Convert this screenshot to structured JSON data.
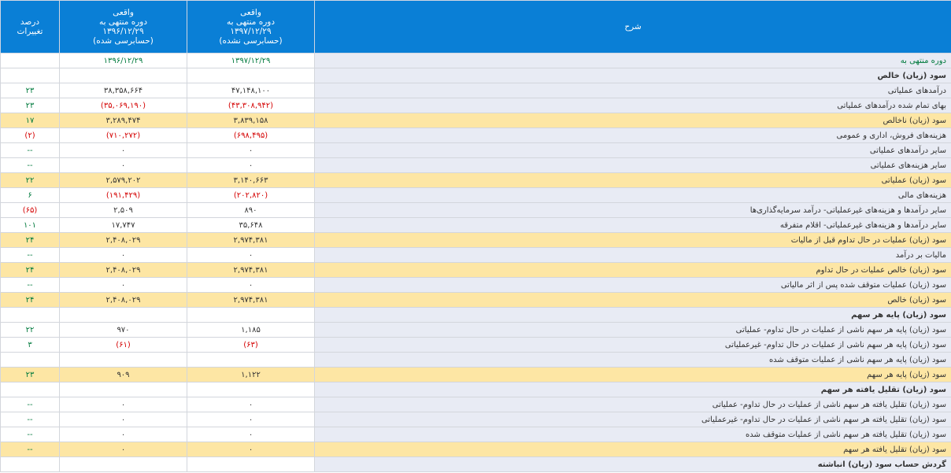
{
  "table": {
    "header": [
      [
        "شرح"
      ],
      [
        "واقعی",
        "دوره منتهی به",
        "۱۳۹۷/۱۲/۲۹",
        "(حسابرسی نشده)"
      ],
      [
        "واقعی",
        "دوره منتهی به",
        "۱۳۹۶/۱۲/۲۹",
        "(حسابرسی شده)"
      ],
      [
        "درصد",
        "تغییرات"
      ]
    ],
    "rows": [
      {
        "style": "period",
        "cells": [
          "دوره منتهی به",
          "۱۳۹۷/۱۲/۲۹",
          "۱۳۹۶/۱۲/۲۹",
          null
        ]
      },
      {
        "style": "section",
        "cells": [
          "سود (زیان) خالص",
          null,
          null,
          null
        ]
      },
      {
        "style": "normal",
        "cells": [
          "درآمدهای عملیاتی",
          "۴۷,۱۴۸,۱۰۰",
          "۳۸,۳۵۸,۶۶۴",
          "۲۳"
        ]
      },
      {
        "style": "normal",
        "cells": [
          "بهای تمام شده درآمدهای عملیاتی",
          "(۴۳,۳۰۸,۹۴۲)",
          "(۳۵,۰۶۹,۱۹۰)",
          "۲۳"
        ]
      },
      {
        "style": "total",
        "cells": [
          "سود (زیان) ناخالص",
          "۳,۸۳۹,۱۵۸",
          "۳,۲۸۹,۴۷۴",
          "۱۷"
        ]
      },
      {
        "style": "normal",
        "cells": [
          "هزینه‌های فروش، اداری و عمومی",
          "(۶۹۸,۴۹۵)",
          "(۷۱۰,۲۷۲)",
          "(۲)"
        ]
      },
      {
        "style": "normal",
        "cells": [
          "سایر درآمدهای عملیاتی",
          "۰",
          "۰",
          "--"
        ]
      },
      {
        "style": "normal",
        "cells": [
          "سایر هزینه‌های عملیاتی",
          "۰",
          "۰",
          "--"
        ]
      },
      {
        "style": "total",
        "cells": [
          "سود (زیان) عملیاتی",
          "۳,۱۴۰,۶۶۳",
          "۲,۵۷۹,۲۰۲",
          "۲۲"
        ]
      },
      {
        "style": "normal",
        "cells": [
          "هزینه‌های مالی",
          "(۲۰۲,۸۲۰)",
          "(۱۹۱,۴۲۹)",
          "۶"
        ]
      },
      {
        "style": "normal",
        "cells": [
          "سایر درآمدها و هزینه‌های غیرعملیاتی- درآمد سرمایه‌گذاری‌ها",
          "۸۹۰",
          "۲,۵۰۹",
          "(۶۵)"
        ]
      },
      {
        "style": "normal",
        "cells": [
          "سایر درآمدها و هزینه‌های غیرعملیاتی- اقلام متفرقه",
          "۳۵,۶۴۸",
          "۱۷,۷۴۷",
          "۱۰۱"
        ]
      },
      {
        "style": "total",
        "cells": [
          "سود (زیان) عملیات در حال تداوم قبل از مالیات",
          "۲,۹۷۴,۳۸۱",
          "۲,۴۰۸,۰۲۹",
          "۲۴"
        ]
      },
      {
        "style": "normal",
        "cells": [
          "مالیات بر درآمد",
          "۰",
          "۰",
          "--"
        ]
      },
      {
        "style": "total",
        "cells": [
          "سود (زیان) خالص عملیات در حال تداوم",
          "۲,۹۷۴,۳۸۱",
          "۲,۴۰۸,۰۲۹",
          "۲۴"
        ]
      },
      {
        "style": "normal",
        "cells": [
          "سود (زیان) عملیات متوقف شده پس از اثر مالیاتی",
          "۰",
          "۰",
          "--"
        ]
      },
      {
        "style": "total",
        "cells": [
          "سود (زیان) خالص",
          "۲,۹۷۴,۳۸۱",
          "۲,۴۰۸,۰۲۹",
          "۲۴"
        ]
      },
      {
        "style": "section",
        "cells": [
          "سود (زیان) پایه هر سهم",
          null,
          null,
          null
        ]
      },
      {
        "style": "normal",
        "cells": [
          "سود (زیان) پایه هر سهم ناشی از عملیات در حال تداوم- عملیاتی",
          "۱,۱۸۵",
          "۹۷۰",
          "۲۲"
        ]
      },
      {
        "style": "normal",
        "cells": [
          "سود (زیان) پایه هر سهم ناشی از عملیات در حال تداوم- غیرعملیاتی",
          "(۶۳)",
          "(۶۱)",
          "۳"
        ]
      },
      {
        "style": "normal",
        "cells": [
          "سود (زیان) پایه هر سهم ناشی از عملیات متوقف شده",
          null,
          null,
          null
        ]
      },
      {
        "style": "total",
        "cells": [
          "سود (زیان) پایه هر سهم",
          "۱,۱۲۲",
          "۹۰۹",
          "۲۳"
        ]
      },
      {
        "style": "section",
        "cells": [
          "سود (زیان) تقلیل یافته هر سهم",
          null,
          null,
          null
        ]
      },
      {
        "style": "normal",
        "cells": [
          "سود (زیان) تقلیل یافته هر سهم ناشی از عملیات در حال تداوم- عملیاتی",
          "۰",
          "۰",
          "--"
        ]
      },
      {
        "style": "normal",
        "cells": [
          "سود (زیان) تقلیل یافته هر سهم ناشی از عملیات در حال تداوم- غیرعملیاتی",
          "۰",
          "۰",
          "--"
        ]
      },
      {
        "style": "normal",
        "cells": [
          "سود (زیان) تقلیل یافته هر سهم ناشی از عملیات متوقف شده",
          "۰",
          "۰",
          "--"
        ]
      },
      {
        "style": "total",
        "cells": [
          "سود (زیان) تقلیل یافته هر سهم",
          "۰",
          "۰",
          "--"
        ]
      },
      {
        "style": "section",
        "cells": [
          "گردش حساب سود (زیان) انباشته",
          null,
          null,
          null
        ]
      }
    ]
  }
}
